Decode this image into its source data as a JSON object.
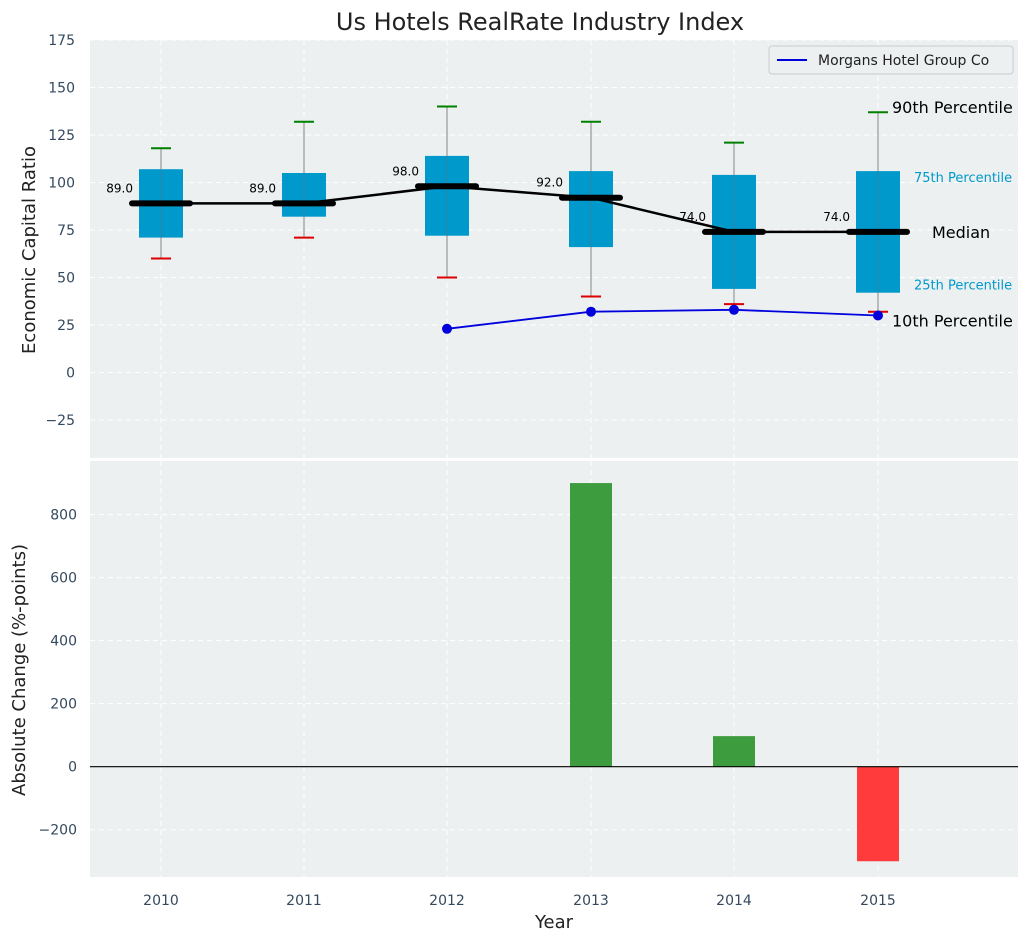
{
  "chart_data": [
    {
      "type": "box",
      "title": "Us Hotels RealRate Industry Index",
      "ylabel": "Economic Capital Ratio",
      "categories": [
        "2010",
        "2011",
        "2012",
        "2013",
        "2014",
        "2015"
      ],
      "ylim": [
        -45,
        175
      ],
      "yticks": [
        -25,
        0,
        25,
        50,
        75,
        100,
        125,
        150,
        175
      ],
      "ytick_labels": [
        "−25",
        "0",
        "25",
        "50",
        "75",
        "100",
        "125",
        "150",
        "175"
      ],
      "grid": true,
      "percentiles": {
        "p10": [
          60,
          71,
          50,
          40,
          36,
          32
        ],
        "p25": [
          71,
          82,
          72,
          66,
          44,
          42
        ],
        "median": [
          89,
          89,
          98,
          92,
          74,
          74
        ],
        "p75": [
          107,
          105,
          114,
          106,
          104,
          106
        ],
        "p90": [
          118,
          132,
          140,
          132,
          121,
          137
        ]
      },
      "median_labels": [
        "89.0",
        "89.0",
        "98.0",
        "92.0",
        "74.0",
        "74.0"
      ],
      "company_series": {
        "name": "Morgans Hotel Group Co",
        "x": [
          "2012",
          "2013",
          "2014",
          "2015"
        ],
        "values": [
          23,
          32,
          33,
          30
        ],
        "color": "#0000dd"
      },
      "annotations": {
        "p90": "90th Percentile",
        "p75": "75th Percentile",
        "median": "Median",
        "p25": "25th Percentile",
        "p10": "10th Percentile"
      },
      "legend_location": "top-right",
      "box_color": "#0099cc",
      "p90_color": "#008000",
      "p10_color": "#dd0000"
    },
    {
      "type": "bar",
      "ylabel": "Absolute Change (%-points)",
      "xlabel": "Year",
      "categories": [
        "2010",
        "2011",
        "2012",
        "2013",
        "2014",
        "2015"
      ],
      "values": [
        0,
        0,
        0,
        900,
        97,
        -300
      ],
      "ylim": [
        -350,
        970
      ],
      "yticks": [
        -200,
        0,
        200,
        400,
        600,
        800
      ],
      "ytick_labels": [
        "−200",
        "0",
        "200",
        "400",
        "600",
        "800"
      ],
      "grid": true,
      "positive_color": "#3d9c3d",
      "negative_color": "#ff3b3b"
    }
  ]
}
